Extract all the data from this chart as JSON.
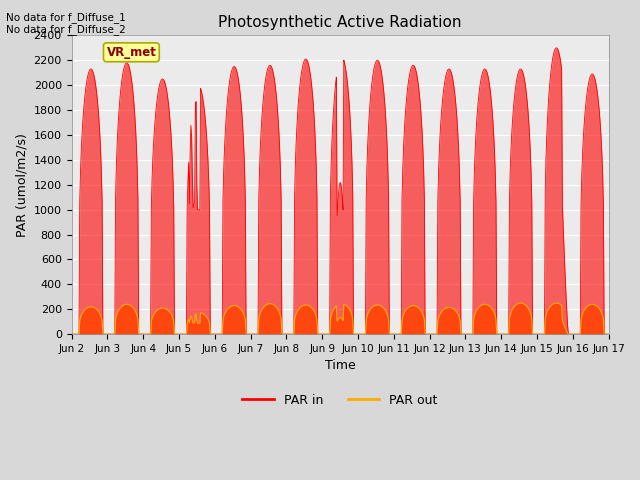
{
  "title": "Photosynthetic Active Radiation",
  "xlabel": "Time",
  "ylabel": "PAR (umol/m2/s)",
  "ylim": [
    0,
    2400
  ],
  "yticks": [
    0,
    200,
    400,
    600,
    800,
    1000,
    1200,
    1400,
    1600,
    1800,
    2000,
    2200,
    2400
  ],
  "figure_bg_color": "#d8d8d8",
  "axes_bg_color": "#ebebeb",
  "grid_color": "#ffffff",
  "par_in_color": "#ff0000",
  "par_out_color": "#ffaa00",
  "legend_labels": [
    "PAR in",
    "PAR out"
  ],
  "text_no_data_1": "No data for f_Diffuse_1",
  "text_no_data_2": "No data for f_Diffuse_2",
  "vr_met_label": "VR_met",
  "n_days": 15,
  "xlim_start": 0,
  "xlim_end": 360,
  "tick_positions": [
    0,
    24,
    48,
    72,
    96,
    120,
    144,
    168,
    192,
    216,
    240,
    264,
    288,
    312,
    336,
    360
  ],
  "tick_labels": [
    "Jun 2",
    "Jun 3",
    "Jun 4",
    "Jun 5",
    "Jun 6",
    "Jun 7",
    "Jun 8",
    "Jun 9",
    "Jun 10",
    "Jun 11",
    "Jun 12",
    "Jun 13",
    "Jun 14",
    "Jun 15",
    "Jun 16",
    "Jun 17"
  ],
  "peak_par_in": [
    2130,
    2180,
    2050,
    2000,
    2150,
    2160,
    2210,
    2230,
    2200,
    2160,
    2130,
    2130,
    2130,
    2300,
    2090
  ],
  "peak_par_out": [
    220,
    240,
    210,
    175,
    230,
    245,
    235,
    245,
    235,
    230,
    215,
    240,
    250,
    250,
    240
  ],
  "disturbance_day4": true,
  "disturbance_day5": true
}
